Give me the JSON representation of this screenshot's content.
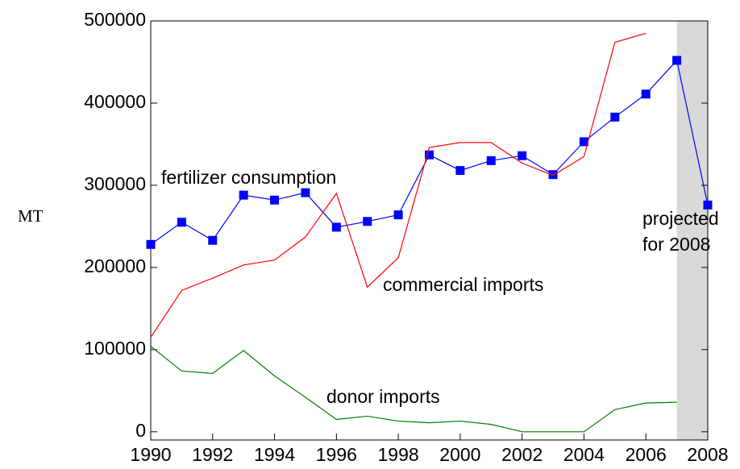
{
  "chart_data": {
    "type": "line",
    "y_label": "MT",
    "annotations": [
      "projected",
      "for 2008"
    ],
    "x": [
      1990,
      1991,
      1992,
      1993,
      1994,
      1995,
      1996,
      1997,
      1998,
      1999,
      2000,
      2001,
      2002,
      2003,
      2004,
      2005,
      2006,
      2007,
      2008
    ],
    "series": [
      {
        "name": "fertilizer consumption",
        "color": "#0000ff",
        "marker": "square",
        "values": [
          228000,
          255000,
          233000,
          288000,
          282000,
          291000,
          249000,
          256000,
          264000,
          337000,
          318000,
          330000,
          336000,
          313000,
          353000,
          383000,
          411000,
          452000,
          276000
        ]
      },
      {
        "name": "commercial imports",
        "color": "#ff0000",
        "values": [
          115000,
          172000,
          187000,
          203000,
          209000,
          237000,
          290000,
          176000,
          212000,
          346000,
          352000,
          352000,
          327000,
          312000,
          335000,
          474000,
          485000,
          null,
          null
        ]
      },
      {
        "name": "donor imports",
        "color": "#008000",
        "values": [
          104000,
          74000,
          71000,
          99000,
          68000,
          42000,
          15000,
          19000,
          13000,
          11000,
          13000,
          9000,
          0,
          0,
          0,
          27000,
          35000,
          36000,
          null
        ]
      }
    ],
    "shaded_region": [
      2007,
      2008
    ],
    "xlim": [
      1990,
      2008
    ],
    "xticks": [
      1990,
      1992,
      1994,
      1996,
      1998,
      2000,
      2002,
      2004,
      2006,
      2008
    ],
    "ylim": [
      -10000,
      500000
    ],
    "yticks": [
      0,
      100000,
      200000,
      300000,
      400000,
      500000
    ],
    "grid": false
  }
}
